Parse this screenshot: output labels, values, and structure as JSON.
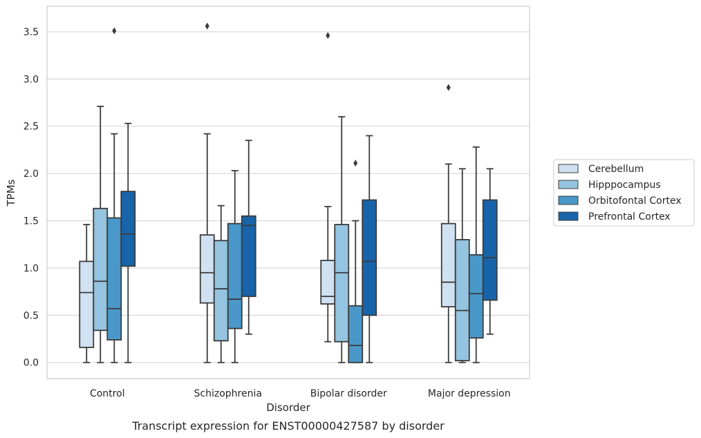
{
  "caption": "Transcript expression for ENST00000427587 by disorder",
  "chart_data": {
    "type": "box",
    "title": "",
    "xlabel": "Disorder",
    "ylabel": "TPMs",
    "ylim": [
      -0.17,
      3.77
    ],
    "yticks": [
      "0.0",
      "0.5",
      "1.0",
      "1.5",
      "2.0",
      "2.5",
      "3.0",
      "3.5"
    ],
    "grid": "horizontal",
    "legend_position": "right",
    "categories": [
      "Control",
      "Schizophrenia",
      "Bipolar disorder",
      "Major depression"
    ],
    "series": [
      {
        "name": "Cerebellum",
        "color": "#d0e1f2",
        "boxes": [
          {
            "whislo": 0.0,
            "q1": 0.16,
            "med": 0.74,
            "q3": 1.07,
            "whishi": 1.46,
            "fliers": []
          },
          {
            "whislo": 0.0,
            "q1": 0.63,
            "med": 0.95,
            "q3": 1.35,
            "whishi": 2.42,
            "fliers": [
              3.56
            ]
          },
          {
            "whislo": 0.22,
            "q1": 0.62,
            "med": 0.7,
            "q3": 1.08,
            "whishi": 1.65,
            "fliers": [
              3.46
            ]
          },
          {
            "whislo": 0.0,
            "q1": 0.59,
            "med": 0.85,
            "q3": 1.47,
            "whishi": 2.1,
            "fliers": [
              2.91
            ]
          }
        ]
      },
      {
        "name": "Hipppocampus",
        "color": "#94c4df",
        "boxes": [
          {
            "whislo": 0.0,
            "q1": 0.34,
            "med": 0.86,
            "q3": 1.63,
            "whishi": 2.71,
            "fliers": []
          },
          {
            "whislo": 0.0,
            "q1": 0.23,
            "med": 0.78,
            "q3": 1.29,
            "whishi": 1.66,
            "fliers": []
          },
          {
            "whislo": 0.0,
            "q1": 0.22,
            "med": 0.95,
            "q3": 1.46,
            "whishi": 2.6,
            "fliers": []
          },
          {
            "whislo": 0.0,
            "q1": 0.02,
            "med": 0.55,
            "q3": 1.3,
            "whishi": 2.05,
            "fliers": []
          }
        ]
      },
      {
        "name": "Orbitofontal Cortex",
        "color": "#4a98c9",
        "boxes": [
          {
            "whislo": 0.0,
            "q1": 0.24,
            "med": 0.57,
            "q3": 1.53,
            "whishi": 2.42,
            "fliers": [
              3.51
            ]
          },
          {
            "whislo": 0.0,
            "q1": 0.36,
            "med": 0.67,
            "q3": 1.47,
            "whishi": 2.03,
            "fliers": []
          },
          {
            "whislo": 0.0,
            "q1": 0.0,
            "med": 0.18,
            "q3": 0.6,
            "whishi": 1.5,
            "fliers": [
              2.11
            ]
          },
          {
            "whislo": 0.0,
            "q1": 0.26,
            "med": 0.73,
            "q3": 1.14,
            "whishi": 2.28,
            "fliers": []
          }
        ]
      },
      {
        "name": "Prefrontal Cortex",
        "color": "#1764ab",
        "boxes": [
          {
            "whislo": 0.0,
            "q1": 1.02,
            "med": 1.36,
            "q3": 1.81,
            "whishi": 2.53,
            "fliers": []
          },
          {
            "whislo": 0.3,
            "q1": 0.7,
            "med": 1.45,
            "q3": 1.55,
            "whishi": 2.35,
            "fliers": []
          },
          {
            "whislo": 0.0,
            "q1": 0.5,
            "med": 1.07,
            "q3": 1.72,
            "whishi": 2.4,
            "fliers": []
          },
          {
            "whislo": 0.3,
            "q1": 0.66,
            "med": 1.11,
            "q3": 1.72,
            "whishi": 2.05,
            "fliers": []
          }
        ]
      }
    ]
  }
}
